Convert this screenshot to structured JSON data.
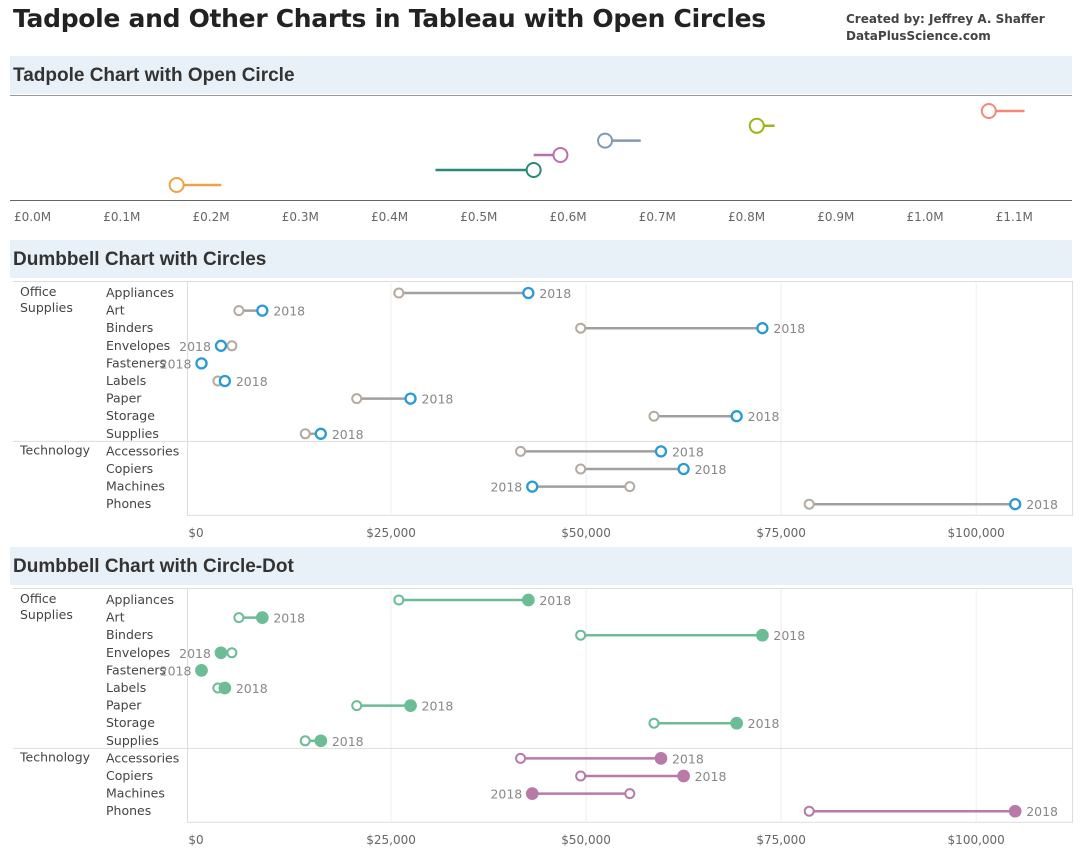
{
  "title": "Tadpole and Other Charts in Tableau with Open Circles",
  "credit": [
    "Created by: Jeffrey A. Shaffer",
    "DataPlusScience.com"
  ],
  "chart_data": [
    {
      "type": "scatter",
      "title": "Tadpole Chart with Open Circle",
      "x_tick_labels": [
        "£0.0M",
        "£0.1M",
        "£0.2M",
        "£0.3M",
        "£0.4M",
        "£0.5M",
        "£0.6M",
        "£0.7M",
        "£0.8M",
        "£0.9M",
        "£1.0M",
        "£1.1M"
      ],
      "xlim": [
        0,
        1.2
      ],
      "units": "£M",
      "points": [
        {
          "value": 0.18,
          "tail_end": 0.23,
          "color": "#f0a04a"
        },
        {
          "value": 0.58,
          "tail_end": 0.47,
          "color": "#2a8a7a"
        },
        {
          "value": 0.61,
          "tail_end": 0.58,
          "color": "#b86faa"
        },
        {
          "value": 0.66,
          "tail_end": 0.7,
          "color": "#8098b4"
        },
        {
          "value": 0.83,
          "tail_end": 0.85,
          "color": "#9fb415"
        },
        {
          "value": 1.09,
          "tail_end": 1.13,
          "color": "#f4877a"
        }
      ]
    },
    {
      "type": "dumbbell",
      "title": "Dumbbell Chart with Circles",
      "marker_style": "open-circles",
      "annotation": "2018",
      "x_tick_labels": [
        "$0",
        "$25,000",
        "$50,000",
        "$75,000",
        "$100,000"
      ],
      "xlim": [
        0,
        111000
      ],
      "colors": {
        "start": "#b5aaa0",
        "end": "#2a9ad4",
        "line": "#a0a0a0"
      },
      "groups": [
        {
          "name": [
            "Office",
            "Supplies"
          ],
          "rows": [
            {
              "label": "Appliances",
              "start": 26000,
              "end": 42600
            },
            {
              "label": "Art",
              "start": 5500,
              "end": 8500
            },
            {
              "label": "Binders",
              "start": 49300,
              "end": 72600
            },
            {
              "label": "Envelopes",
              "start": 4600,
              "end": 3200
            },
            {
              "label": "Fasteners",
              "start": 800,
              "end": 700
            },
            {
              "label": "Labels",
              "start": 2800,
              "end": 3700
            },
            {
              "label": "Paper",
              "start": 20600,
              "end": 27500
            },
            {
              "label": "Storage",
              "start": 58700,
              "end": 69300
            },
            {
              "label": "Supplies",
              "start": 14000,
              "end": 16000
            }
          ]
        },
        {
          "name": [
            "Technology"
          ],
          "rows": [
            {
              "label": "Accessories",
              "start": 41600,
              "end": 59600
            },
            {
              "label": "Copiers",
              "start": 49300,
              "end": 62500
            },
            {
              "label": "Machines",
              "start": 55600,
              "end": 43100
            },
            {
              "label": "Phones",
              "start": 78600,
              "end": 105000
            }
          ]
        }
      ]
    },
    {
      "type": "dumbbell",
      "title": "Dumbbell Chart with Circle-Dot",
      "marker_style": "open-start-filled-end",
      "annotation": "2018",
      "x_tick_labels": [
        "$0",
        "$25,000",
        "$50,000",
        "$75,000",
        "$100,000"
      ],
      "xlim": [
        0,
        111000
      ],
      "colors": {
        "office": "#6cbc96",
        "technology": "#b87aa8"
      },
      "groups": [
        {
          "name": [
            "Office",
            "Supplies"
          ],
          "rows": [
            {
              "label": "Appliances",
              "start": 26000,
              "end": 42600
            },
            {
              "label": "Art",
              "start": 5500,
              "end": 8500
            },
            {
              "label": "Binders",
              "start": 49300,
              "end": 72600
            },
            {
              "label": "Envelopes",
              "start": 4600,
              "end": 3200
            },
            {
              "label": "Fasteners",
              "start": 800,
              "end": 700
            },
            {
              "label": "Labels",
              "start": 2800,
              "end": 3700
            },
            {
              "label": "Paper",
              "start": 20600,
              "end": 27500
            },
            {
              "label": "Storage",
              "start": 58700,
              "end": 69300
            },
            {
              "label": "Supplies",
              "start": 14000,
              "end": 16000
            }
          ]
        },
        {
          "name": [
            "Technology"
          ],
          "rows": [
            {
              "label": "Accessories",
              "start": 41600,
              "end": 59600
            },
            {
              "label": "Copiers",
              "start": 49300,
              "end": 62500
            },
            {
              "label": "Machines",
              "start": 55600,
              "end": 43100
            },
            {
              "label": "Phones",
              "start": 78600,
              "end": 105000
            }
          ]
        }
      ]
    }
  ]
}
